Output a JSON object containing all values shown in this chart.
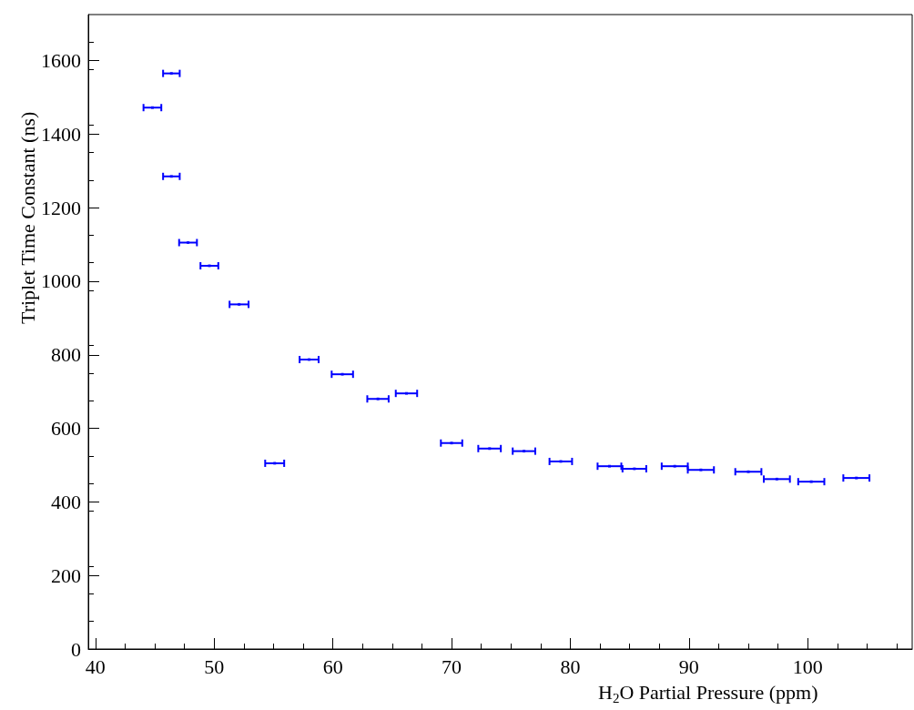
{
  "chart_data": {
    "type": "scatter",
    "xlabel": "H$_{2}$O Partial Pressure (ppm)",
    "ylabel": "Triplet Time Constant (ns)",
    "xlim": [
      39.4,
      108.8
    ],
    "xticks": [
      40,
      50,
      60,
      70,
      80,
      90,
      100
    ],
    "ylim": [
      0,
      1725
    ],
    "yticks": [
      0,
      200,
      400,
      600,
      800,
      1000,
      1200,
      1400,
      1600
    ],
    "grid": false,
    "marker": "square",
    "series": [
      {
        "color": "#0000ff",
        "x": [
          44.8,
          46.4,
          46.4,
          47.8,
          49.6,
          52.1,
          55.1,
          58.0,
          60.8,
          63.8,
          66.2,
          70.0,
          73.2,
          76.1,
          79.2,
          83.3,
          85.4,
          88.8,
          91.0,
          95.0,
          97.4,
          100.3,
          104.1
        ],
        "values": [
          1472,
          1565,
          1285,
          1105,
          1042,
          937,
          505,
          787,
          747,
          680,
          695,
          560,
          545,
          538,
          510,
          497,
          490,
          497,
          487,
          482,
          462,
          455,
          465
        ],
        "xerrors": [
          0.75,
          0.7,
          0.7,
          0.75,
          0.75,
          0.8,
          0.8,
          0.8,
          0.9,
          0.9,
          0.9,
          0.9,
          0.95,
          0.95,
          0.95,
          1.0,
          1.0,
          1.1,
          1.1,
          1.1,
          1.1,
          1.1,
          1.1
        ]
      }
    ]
  }
}
